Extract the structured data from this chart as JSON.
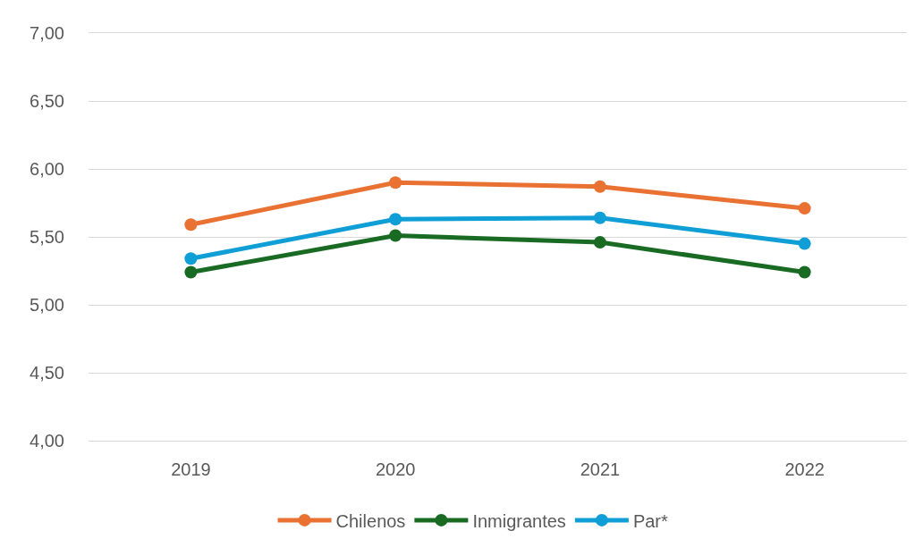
{
  "chart_data": {
    "type": "line",
    "categories": [
      "2019",
      "2020",
      "2021",
      "2022"
    ],
    "series": [
      {
        "name": "Chilenos",
        "color": "#e97132",
        "values": [
          5.59,
          5.9,
          5.87,
          5.71
        ]
      },
      {
        "name": "Inmigrantes",
        "color": "#196b24",
        "values": [
          5.24,
          5.51,
          5.46,
          5.24
        ]
      },
      {
        "name": "Par*",
        "color": "#0f9ed5",
        "values": [
          5.34,
          5.63,
          5.64,
          5.45
        ]
      }
    ],
    "ylim": [
      4,
      7
    ],
    "yticks": [
      {
        "value": 4,
        "label": "4,00"
      },
      {
        "value": 4.5,
        "label": "4,50"
      },
      {
        "value": 5,
        "label": "5,00"
      },
      {
        "value": 5.5,
        "label": "5,50"
      },
      {
        "value": 6,
        "label": "6,00"
      },
      {
        "value": 6.5,
        "label": "6,50"
      },
      {
        "value": 7,
        "label": "7,00"
      }
    ],
    "grid": "y",
    "legend": "bottom",
    "marker": "circle",
    "line_style": "solid"
  }
}
